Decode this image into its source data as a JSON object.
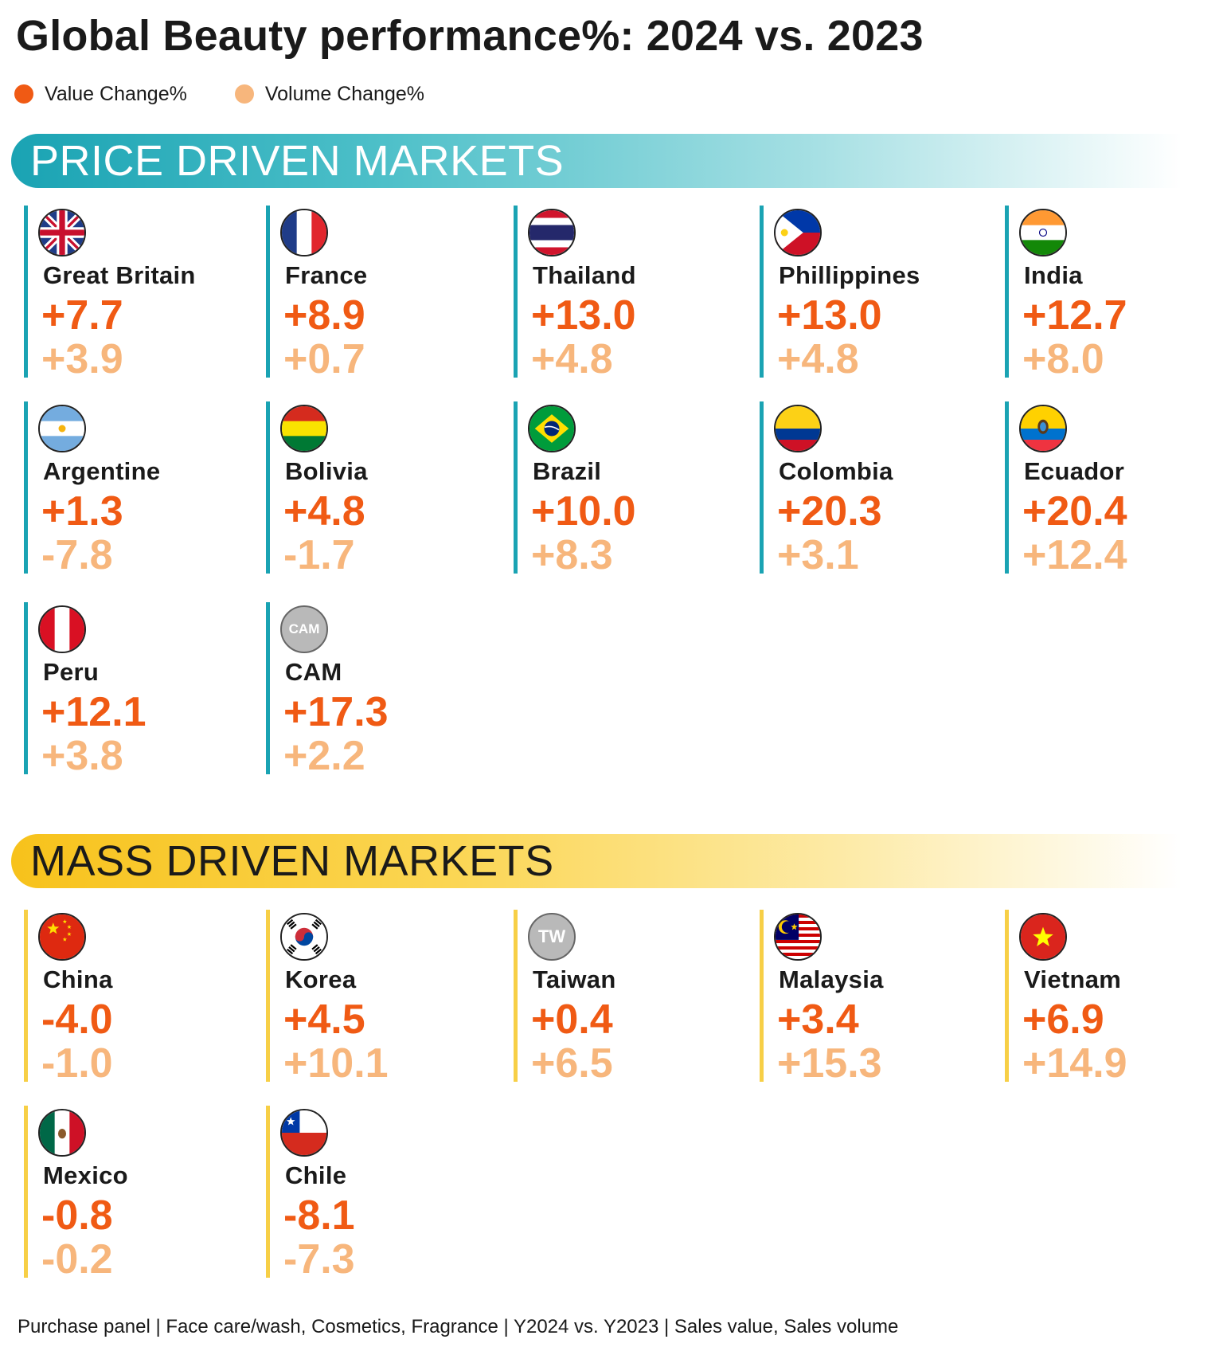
{
  "title": "Global Beauty performance%: 2024 vs. 2023",
  "legend": {
    "value_label": "Value Change%",
    "volume_label": "Volume Change%",
    "value_color": "#f05a14",
    "volume_color": "#f7b67c"
  },
  "sections": {
    "price": {
      "title": "PRICE DRIVEN MARKETS",
      "color": "#1aa3b3"
    },
    "mass": {
      "title": "MASS DRIVEN MARKETS",
      "color": "#f7c21b"
    }
  },
  "chart_data": {
    "type": "table",
    "title": "Global Beauty performance%: 2024 vs. 2023",
    "columns": [
      "Value Change%",
      "Volume Change%"
    ],
    "groups": [
      {
        "name": "PRICE DRIVEN MARKETS",
        "markets": [
          {
            "name": "Great Britain",
            "value": "+7.7",
            "volume": "+3.9"
          },
          {
            "name": "France",
            "value": "+8.9",
            "volume": "+0.7"
          },
          {
            "name": "Thailand",
            "value": "+13.0",
            "volume": "+4.8"
          },
          {
            "name": "Phillippines",
            "value": "+13.0",
            "volume": "+4.8"
          },
          {
            "name": "India",
            "value": "+12.7",
            "volume": "+8.0"
          },
          {
            "name": "Argentine",
            "value": "+1.3",
            "volume": "-7.8"
          },
          {
            "name": "Bolivia",
            "value": "+4.8",
            "volume": "-1.7"
          },
          {
            "name": "Brazil",
            "value": "+10.0",
            "volume": "+8.3"
          },
          {
            "name": "Colombia",
            "value": "+20.3",
            "volume": "+3.1"
          },
          {
            "name": "Ecuador",
            "value": "+20.4",
            "volume": "+12.4"
          },
          {
            "name": "Peru",
            "value": "+12.1",
            "volume": "+3.8"
          },
          {
            "name": "CAM",
            "value": "+17.3",
            "volume": "+2.2",
            "badge": "CAM"
          }
        ]
      },
      {
        "name": "MASS DRIVEN MARKETS",
        "markets": [
          {
            "name": "China",
            "value": "-4.0",
            "volume": "-1.0"
          },
          {
            "name": "Korea",
            "value": "+4.5",
            "volume": "+10.1"
          },
          {
            "name": "Taiwan",
            "value": "+0.4",
            "volume": "+6.5",
            "badge": "TW"
          },
          {
            "name": "Malaysia",
            "value": "+3.4",
            "volume": "+15.3"
          },
          {
            "name": "Vietnam",
            "value": "+6.9",
            "volume": "+14.9"
          },
          {
            "name": "Mexico",
            "value": "-0.8",
            "volume": "-0.2"
          },
          {
            "name": "Chile",
            "value": "-8.1",
            "volume": "-7.3"
          }
        ]
      }
    ]
  },
  "footnote": "Purchase panel | Face care/wash, Cosmetics, Fragrance | Y2024 vs. Y2023 | Sales value, Sales volume"
}
